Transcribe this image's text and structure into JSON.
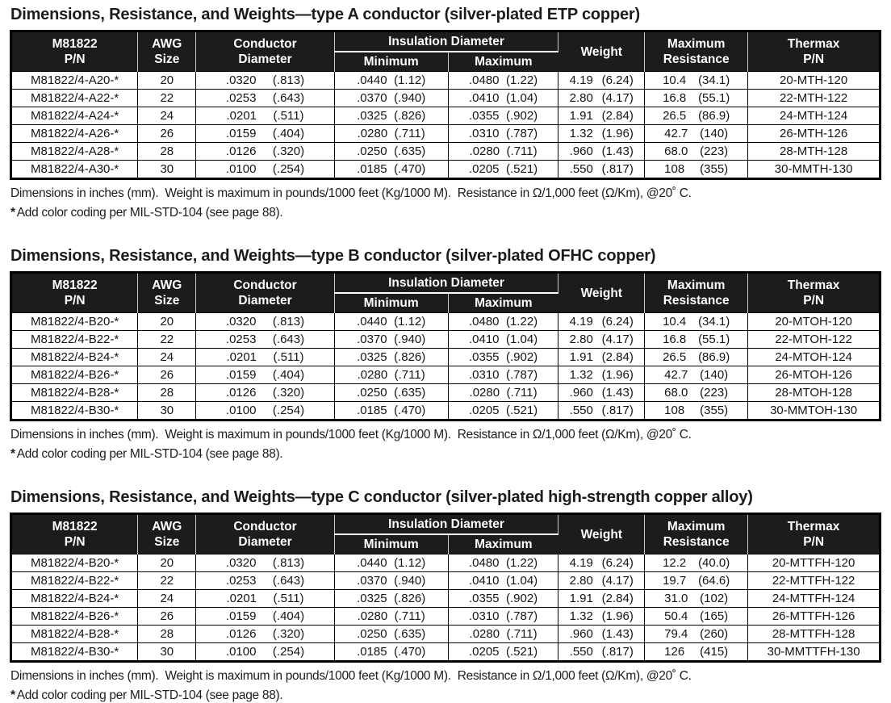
{
  "header": {
    "pn": "M81822\nP/N",
    "awg": "AWG\nSize",
    "conductor": "Conductor\nDiameter",
    "insulation": "Insulation Diameter",
    "min": "Minimum",
    "max": "Maximum",
    "weight": "Weight",
    "resistance": "Maximum\nResistance",
    "thermax": "Thermax\nP/N"
  },
  "notes": {
    "dimensions": "Dimensions in inches (mm).  Weight is maximum in pounds/1000 feet (Kg/1000 M).  Resistance in Ω/1,000 feet (Ω/Km), @20˚ C.",
    "star": "*",
    "color_coding": "Add color coding per MIL-STD-104 (see page 88)."
  },
  "colors": {
    "header_bg": "#1d1b1c",
    "header_text": "#ffffff",
    "border": "#000000",
    "text": "#1a1a1a"
  },
  "sections": [
    {
      "title": "Dimensions, Resistance, and Weights—type A conductor (silver-plated ETP copper)",
      "rows": [
        {
          "pn": "M81822/4-A20-*",
          "awg": "20",
          "conductor": [
            ".0320",
            "(.813)"
          ],
          "ins_min": [
            ".0440",
            "(1.12)"
          ],
          "ins_max": [
            ".0480",
            "(1.22)"
          ],
          "weight": [
            "4.19",
            "(6.24)"
          ],
          "resistance": [
            "10.4",
            "(34.1)"
          ],
          "thermax": "20-MTH-120"
        },
        {
          "pn": "M81822/4-A22-*",
          "awg": "22",
          "conductor": [
            ".0253",
            "(.643)"
          ],
          "ins_min": [
            ".0370",
            "(.940)"
          ],
          "ins_max": [
            ".0410",
            "(1.04)"
          ],
          "weight": [
            "2.80",
            "(4.17)"
          ],
          "resistance": [
            "16.8",
            "(55.1)"
          ],
          "thermax": "22-MTH-122"
        },
        {
          "pn": "M81822/4-A24-*",
          "awg": "24",
          "conductor": [
            ".0201",
            "(.511)"
          ],
          "ins_min": [
            ".0325",
            "(.826)"
          ],
          "ins_max": [
            ".0355",
            "(.902)"
          ],
          "weight": [
            "1.91",
            "(2.84)"
          ],
          "resistance": [
            "26.5",
            "(86.9)"
          ],
          "thermax": "24-MTH-124"
        },
        {
          "pn": "M81822/4-A26-*",
          "awg": "26",
          "conductor": [
            ".0159",
            "(.404)"
          ],
          "ins_min": [
            ".0280",
            "(.711)"
          ],
          "ins_max": [
            ".0310",
            "(.787)"
          ],
          "weight": [
            "1.32",
            "(1.96)"
          ],
          "resistance": [
            "42.7",
            "(140)"
          ],
          "thermax": "26-MTH-126"
        },
        {
          "pn": "M81822/4-A28-*",
          "awg": "28",
          "conductor": [
            ".0126",
            "(.320)"
          ],
          "ins_min": [
            ".0250",
            "(.635)"
          ],
          "ins_max": [
            ".0280",
            "(.711)"
          ],
          "weight": [
            ".960",
            "(1.43)"
          ],
          "resistance": [
            "68.0",
            "(223)"
          ],
          "thermax": "28-MTH-128"
        },
        {
          "pn": "M81822/4-A30-*",
          "awg": "30",
          "conductor": [
            ".0100",
            "(.254)"
          ],
          "ins_min": [
            ".0185",
            "(.470)"
          ],
          "ins_max": [
            ".0205",
            "(.521)"
          ],
          "weight": [
            ".550",
            "(.817)"
          ],
          "resistance": [
            "108",
            "(355)"
          ],
          "thermax": "30-MMTH-130"
        }
      ]
    },
    {
      "title": "Dimensions, Resistance, and Weights—type B conductor (silver-plated OFHC copper)",
      "rows": [
        {
          "pn": "M81822/4-B20-*",
          "awg": "20",
          "conductor": [
            ".0320",
            "(.813)"
          ],
          "ins_min": [
            ".0440",
            "(1.12)"
          ],
          "ins_max": [
            ".0480",
            "(1.22)"
          ],
          "weight": [
            "4.19",
            "(6.24)"
          ],
          "resistance": [
            "10.4",
            "(34.1)"
          ],
          "thermax": "20-MTOH-120"
        },
        {
          "pn": "M81822/4-B22-*",
          "awg": "22",
          "conductor": [
            ".0253",
            "(.643)"
          ],
          "ins_min": [
            ".0370",
            "(.940)"
          ],
          "ins_max": [
            ".0410",
            "(1.04)"
          ],
          "weight": [
            "2.80",
            "(4.17)"
          ],
          "resistance": [
            "16.8",
            "(55.1)"
          ],
          "thermax": "22-MTOH-122"
        },
        {
          "pn": "M81822/4-B24-*",
          "awg": "24",
          "conductor": [
            ".0201",
            "(.511)"
          ],
          "ins_min": [
            ".0325",
            "(.826)"
          ],
          "ins_max": [
            ".0355",
            "(.902)"
          ],
          "weight": [
            "1.91",
            "(2.84)"
          ],
          "resistance": [
            "26.5",
            "(86.9)"
          ],
          "thermax": "24-MTOH-124"
        },
        {
          "pn": "M81822/4-B26-*",
          "awg": "26",
          "conductor": [
            ".0159",
            "(.404)"
          ],
          "ins_min": [
            ".0280",
            "(.711)"
          ],
          "ins_max": [
            ".0310",
            "(.787)"
          ],
          "weight": [
            "1.32",
            "(1.96)"
          ],
          "resistance": [
            "42.7",
            "(140)"
          ],
          "thermax": "26-MTOH-126"
        },
        {
          "pn": "M81822/4-B28-*",
          "awg": "28",
          "conductor": [
            ".0126",
            "(.320)"
          ],
          "ins_min": [
            ".0250",
            "(.635)"
          ],
          "ins_max": [
            ".0280",
            "(.711)"
          ],
          "weight": [
            ".960",
            "(1.43)"
          ],
          "resistance": [
            "68.0",
            "(223)"
          ],
          "thermax": "28-MTOH-128"
        },
        {
          "pn": "M81822/4-B30-*",
          "awg": "30",
          "conductor": [
            ".0100",
            "(.254)"
          ],
          "ins_min": [
            ".0185",
            "(.470)"
          ],
          "ins_max": [
            ".0205",
            "(.521)"
          ],
          "weight": [
            ".550",
            "(.817)"
          ],
          "resistance": [
            "108",
            "(355)"
          ],
          "thermax": "30-MMTOH-130"
        }
      ]
    },
    {
      "title": "Dimensions, Resistance, and Weights—type C conductor (silver-plated high-strength copper alloy)",
      "rows": [
        {
          "pn": "M81822/4-B20-*",
          "awg": "20",
          "conductor": [
            ".0320",
            "(.813)"
          ],
          "ins_min": [
            ".0440",
            "(1.12)"
          ],
          "ins_max": [
            ".0480",
            "(1.22)"
          ],
          "weight": [
            "4.19",
            "(6.24)"
          ],
          "resistance": [
            "12.2",
            "(40.0)"
          ],
          "thermax": "20-MTTFH-120"
        },
        {
          "pn": "M81822/4-B22-*",
          "awg": "22",
          "conductor": [
            ".0253",
            "(.643)"
          ],
          "ins_min": [
            ".0370",
            "(.940)"
          ],
          "ins_max": [
            ".0410",
            "(1.04)"
          ],
          "weight": [
            "2.80",
            "(4.17)"
          ],
          "resistance": [
            "19.7",
            "(64.6)"
          ],
          "thermax": "22-MTTFH-122"
        },
        {
          "pn": "M81822/4-B24-*",
          "awg": "24",
          "conductor": [
            ".0201",
            "(.511)"
          ],
          "ins_min": [
            ".0325",
            "(.826)"
          ],
          "ins_max": [
            ".0355",
            "(.902)"
          ],
          "weight": [
            "1.91",
            "(2.84)"
          ],
          "resistance": [
            "31.0",
            "(102)"
          ],
          "thermax": "24-MTTFH-124"
        },
        {
          "pn": "M81822/4-B26-*",
          "awg": "26",
          "conductor": [
            ".0159",
            "(.404)"
          ],
          "ins_min": [
            ".0280",
            "(.711)"
          ],
          "ins_max": [
            ".0310",
            "(.787)"
          ],
          "weight": [
            "1.32",
            "(1.96)"
          ],
          "resistance": [
            "50.4",
            "(165)"
          ],
          "thermax": "26-MTTFH-126"
        },
        {
          "pn": "M81822/4-B28-*",
          "awg": "28",
          "conductor": [
            ".0126",
            "(.320)"
          ],
          "ins_min": [
            ".0250",
            "(.635)"
          ],
          "ins_max": [
            ".0280",
            "(.711)"
          ],
          "weight": [
            ".960",
            "(1.43)"
          ],
          "resistance": [
            "79.4",
            "(260)"
          ],
          "thermax": "28-MTTFH-128"
        },
        {
          "pn": "M81822/4-B30-*",
          "awg": "30",
          "conductor": [
            ".0100",
            "(.254)"
          ],
          "ins_min": [
            ".0185",
            "(.470)"
          ],
          "ins_max": [
            ".0205",
            "(.521)"
          ],
          "weight": [
            ".550",
            "(.817)"
          ],
          "resistance": [
            "126",
            "(415)"
          ],
          "thermax": "30-MMTTFH-130"
        }
      ]
    }
  ]
}
